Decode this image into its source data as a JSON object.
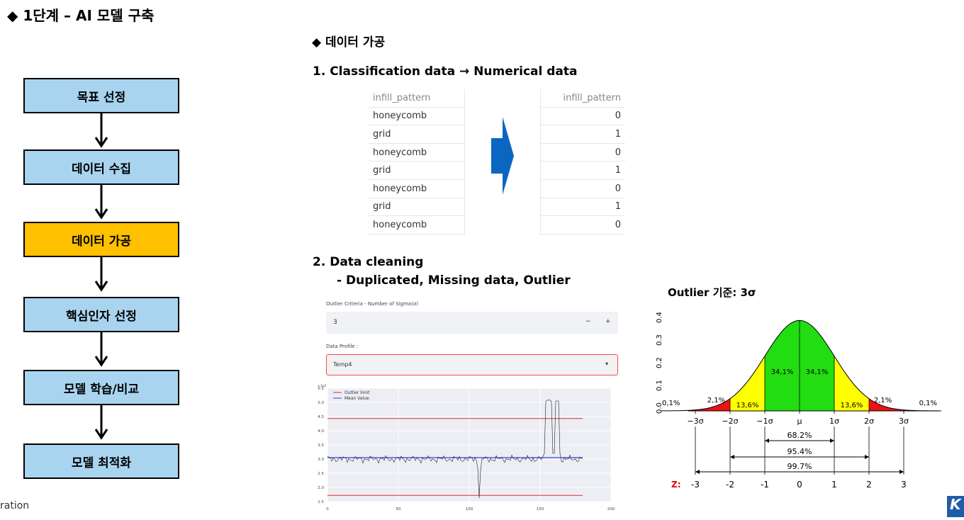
{
  "title": "◆ 1단계 – AI 모델 구축",
  "section": "◆    데이터 가공",
  "flow": [
    "목표 선정",
    "데이터 수집",
    "데이터 가공",
    "핵심인자 선정",
    "모델 학습/비교",
    "모델 최적화"
  ],
  "flow_active_index": 2,
  "step1": "1.  Classification data → Numerical data",
  "table_left": {
    "header": "infill_pattern",
    "rows": [
      "honeycomb",
      "grid",
      "honeycomb",
      "grid",
      "honeycomb",
      "grid",
      "honeycomb"
    ]
  },
  "table_right": {
    "header": "infill_pattern",
    "rows": [
      "0",
      "1",
      "0",
      "1",
      "0",
      "1",
      "0"
    ]
  },
  "step2_title": "2.  Data cleaning",
  "step2_sub": "- Duplicated, Missing data, Outlier",
  "ui": {
    "criteria_label": "Outlier Criteria - Number of Sigma(σ)",
    "criteria_value": "3",
    "minus": "−",
    "plus": "+",
    "profile_label": "Data Profile :",
    "profile_value": "Temp4",
    "chevron": "▾"
  },
  "criteria_text": "Outlier 기준: 3σ",
  "chart_data": [
    {
      "type": "line",
      "y_exponent_label": "+1e2",
      "y_ticks": [
        "5.5",
        "5.0",
        "4.5",
        "4.0",
        "3.5",
        "3.0",
        "2.5",
        "2.0",
        "1.5"
      ],
      "x_ticks": [
        "0",
        "50",
        "100",
        "150",
        "200"
      ],
      "xlim": [
        0,
        200
      ],
      "ylim": [
        1.5,
        5.5
      ],
      "legend_position": "top-left",
      "series": [
        {
          "name": "Outlier limit",
          "color": "#e03030",
          "values": [
            4.43,
            1.72
          ]
        },
        {
          "name": "Mean Value",
          "color": "#3040d0",
          "values": [
            3.05
          ]
        }
      ],
      "signal_approx": "≈3.0 baseline with spike down to ≈1.6 near x≈107 and spikes up to ≈5.1 near x≈155–162"
    },
    {
      "type": "area",
      "y_ticks": [
        "0.0",
        "0.1",
        "0.2",
        "0.3",
        "0.4"
      ],
      "x_ticks": [
        "−3σ",
        "−2σ",
        "−1σ",
        "μ",
        "1σ",
        "2σ",
        "3σ"
      ],
      "region_labels": [
        "0,1%",
        "2,1%",
        "13,6%",
        "34,1%",
        "34,1%",
        "13,6%",
        "2,1%",
        "0,1%"
      ],
      "ranges": [
        "68.2%",
        "95.4%",
        "99.7%"
      ],
      "z_label": "Z:",
      "z_values": [
        "-3",
        "-2",
        "-1",
        "0",
        "1",
        "2",
        "3"
      ],
      "colors": {
        "center": "#22dd11",
        "mid": "#ffff00",
        "tail": "#ee1111"
      }
    }
  ],
  "footer_left": "ration",
  "logo_text": "K"
}
